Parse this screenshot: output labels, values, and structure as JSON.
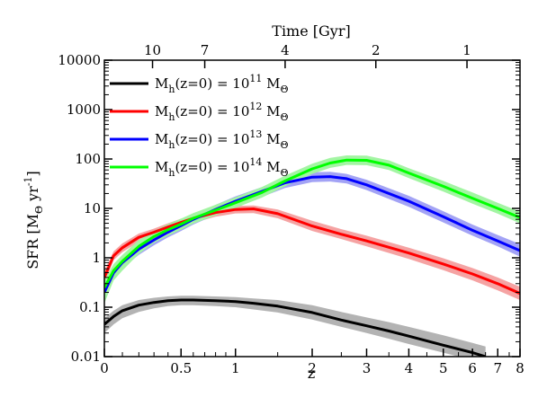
{
  "chart_data": {
    "type": "line",
    "xlabel": "z",
    "ylabel": "SFR [M⊙ yr⁻¹]",
    "ylabel_parts": {
      "main": "SFR [M",
      "sub": "Θ",
      "mid": " yr",
      "sup": "-1",
      "end": "]"
    },
    "top_axis_label": "Time [Gyr]",
    "x_scale": "log(1+z)",
    "y_scale": "log",
    "xlim": [
      0,
      8
    ],
    "ylim": [
      0.01,
      10000
    ],
    "x_ticks": [
      0,
      0.5,
      1,
      2,
      3,
      4,
      5,
      6,
      7,
      8
    ],
    "x_tick_labels": [
      "0",
      "0.5",
      "1",
      "2",
      "3",
      "4",
      "5",
      "6",
      "7",
      "8"
    ],
    "y_ticks": [
      0.01,
      0.1,
      1,
      10,
      100,
      1000,
      10000
    ],
    "y_tick_labels": [
      "0.01",
      "0.1",
      "1",
      "10",
      "100",
      "1000",
      "10000"
    ],
    "top_ticks": [
      {
        "label": "10",
        "z": 0.29
      },
      {
        "label": "7",
        "z": 0.7
      },
      {
        "label": "4",
        "z": 1.6
      },
      {
        "label": "2",
        "z": 3.2
      },
      {
        "label": "1",
        "z": 5.8
      }
    ],
    "legend_position": "top-left",
    "series": [
      {
        "legend": {
          "main": "M",
          "sub1": "h",
          "mid": "(z=0) = 10",
          "sup": "11",
          "sp": " M",
          "sub2": "Θ"
        },
        "color": "#000000",
        "band_color": "#b3b3b3",
        "z": [
          0,
          0.05,
          0.1,
          0.2,
          0.3,
          0.4,
          0.5,
          0.6,
          0.8,
          1.0,
          1.2,
          1.5,
          2.0,
          2.5,
          3.0,
          3.5,
          4.0,
          5.0,
          6.0,
          6.5
        ],
        "y": [
          0.045,
          0.065,
          0.085,
          0.11,
          0.125,
          0.135,
          0.14,
          0.14,
          0.135,
          0.13,
          0.12,
          0.105,
          0.078,
          0.055,
          0.042,
          0.033,
          0.026,
          0.017,
          0.012,
          0.01
        ],
        "lo": [
          0.03,
          0.045,
          0.06,
          0.08,
          0.095,
          0.105,
          0.11,
          0.11,
          0.105,
          0.1,
          0.09,
          0.078,
          0.056,
          0.04,
          0.03,
          0.023,
          0.018,
          0.012,
          0.0085,
          0.0072
        ],
        "hi": [
          0.06,
          0.085,
          0.11,
          0.14,
          0.155,
          0.165,
          0.17,
          0.17,
          0.165,
          0.16,
          0.15,
          0.14,
          0.11,
          0.08,
          0.062,
          0.05,
          0.04,
          0.027,
          0.019,
          0.016
        ]
      },
      {
        "legend": {
          "main": "M",
          "sub1": "h",
          "mid": "(z=0) = 10",
          "sup": "12",
          "sp": " M",
          "sub2": "Θ"
        },
        "color": "#ff0000",
        "band_color": "#f5a3a3",
        "z": [
          0,
          0.05,
          0.1,
          0.2,
          0.3,
          0.4,
          0.5,
          0.6,
          0.8,
          1.0,
          1.2,
          1.5,
          2.0,
          2.5,
          3.0,
          4.0,
          5.0,
          6.0,
          7.0,
          8.0
        ],
        "y": [
          0.4,
          1.1,
          1.6,
          2.6,
          3.3,
          4.2,
          5.2,
          6.3,
          8.2,
          9.5,
          9.8,
          7.8,
          4.4,
          3.0,
          2.2,
          1.25,
          0.75,
          0.47,
          0.3,
          0.19
        ],
        "lo": [
          0.3,
          0.9,
          1.3,
          2.1,
          2.7,
          3.4,
          4.2,
          5.1,
          6.8,
          7.9,
          8.0,
          6.3,
          3.5,
          2.4,
          1.7,
          0.95,
          0.56,
          0.35,
          0.22,
          0.14
        ],
        "hi": [
          0.55,
          1.35,
          1.95,
          3.1,
          3.9,
          5.0,
          6.2,
          7.5,
          9.8,
          11.2,
          11.5,
          9.5,
          5.6,
          3.8,
          2.8,
          1.6,
          0.98,
          0.62,
          0.4,
          0.26
        ]
      },
      {
        "legend": {
          "main": "M",
          "sub1": "h",
          "mid": "(z=0) = 10",
          "sup": "13",
          "sp": " M",
          "sub2": "Θ"
        },
        "color": "#0000ff",
        "band_color": "#a3a3f5",
        "z": [
          0,
          0.05,
          0.1,
          0.2,
          0.3,
          0.4,
          0.5,
          0.6,
          0.8,
          1.0,
          1.3,
          1.6,
          2.0,
          2.3,
          2.6,
          3.0,
          4.0,
          5.0,
          6.0,
          7.0,
          8.0
        ],
        "y": [
          0.2,
          0.5,
          0.8,
          1.5,
          2.3,
          3.3,
          4.5,
          6.0,
          9.5,
          14,
          22,
          33,
          43,
          44,
          40,
          30,
          14,
          6.8,
          3.6,
          2.2,
          1.4
        ],
        "lo": [
          0.13,
          0.38,
          0.62,
          1.15,
          1.8,
          2.6,
          3.5,
          4.7,
          7.4,
          11,
          17,
          26,
          34,
          35,
          32,
          23.5,
          10.8,
          5.2,
          2.8,
          1.7,
          1.05
        ],
        "hi": [
          0.3,
          0.65,
          1.0,
          1.9,
          2.9,
          4.1,
          5.6,
          7.5,
          11.8,
          17.5,
          27,
          41,
          54,
          55,
          50,
          38,
          18,
          8.8,
          4.7,
          2.9,
          1.9
        ]
      },
      {
        "legend": {
          "main": "M",
          "sub1": "h",
          "mid": "(z=0) = 10",
          "sup": "14",
          "sp": " M",
          "sub2": "Θ"
        },
        "color": "#00ff00",
        "band_color": "#a3f5a3",
        "z": [
          0,
          0.05,
          0.1,
          0.2,
          0.3,
          0.4,
          0.5,
          0.6,
          0.8,
          1.0,
          1.3,
          1.6,
          2.0,
          2.3,
          2.6,
          3.0,
          3.5,
          4.0,
          5.0,
          6.0,
          7.0,
          8.0
        ],
        "y": [
          0.25,
          0.55,
          0.85,
          1.7,
          2.7,
          3.7,
          4.8,
          6.3,
          9.2,
          13,
          21,
          36,
          63,
          83,
          95,
          94,
          75,
          52,
          28,
          16,
          10,
          6.5
        ],
        "lo": [
          0.12,
          0.35,
          0.55,
          1.2,
          2.0,
          2.8,
          3.7,
          4.9,
          7.2,
          10.2,
          16.5,
          28,
          50,
          66,
          76,
          75,
          60,
          41,
          22,
          12.5,
          7.8,
          5.0
        ],
        "hi": [
          0.35,
          0.75,
          1.15,
          2.3,
          3.5,
          4.8,
          6.2,
          8.0,
          11.8,
          16.8,
          27,
          46,
          80,
          105,
          118,
          117,
          94,
          65,
          36,
          21,
          13,
          8.6
        ]
      }
    ]
  }
}
